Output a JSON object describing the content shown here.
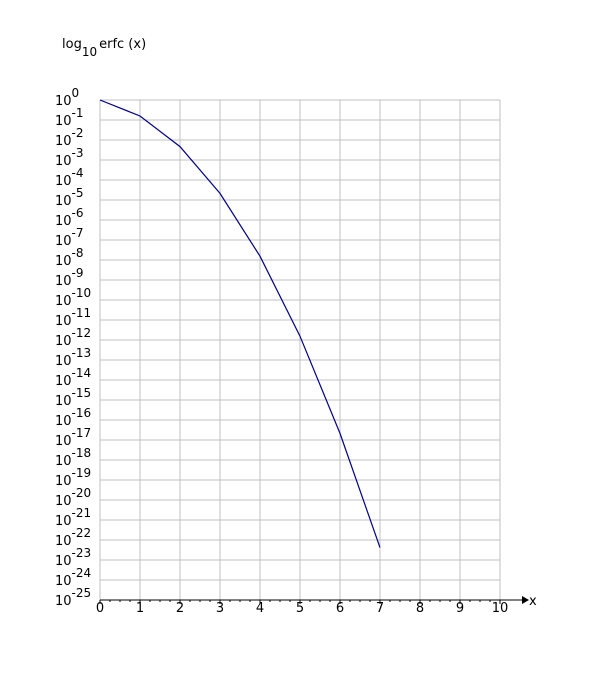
{
  "chart_data": {
    "type": "line",
    "title_main": "log",
    "title_sub": "10",
    "title_rest": "erfc (x)",
    "xlabel": "x",
    "xlim": [
      0,
      10
    ],
    "ylim": [
      -25,
      0
    ],
    "y_scale": "log10",
    "y_tick_base": "10",
    "x_ticks": [
      "0",
      "1",
      "2",
      "3",
      "4",
      "5",
      "6",
      "7",
      "8",
      "9",
      "10"
    ],
    "y_tick_exponents": [
      "0",
      "-1",
      "-2",
      "-3",
      "-4",
      "-5",
      "-6",
      "-7",
      "-8",
      "-9",
      "-10",
      "-11",
      "-12",
      "-13",
      "-14",
      "-15",
      "-16",
      "-17",
      "-18",
      "-19",
      "-20",
      "-21",
      "-22",
      "-23",
      "-24",
      "-25"
    ],
    "grid": true,
    "line_color": "#00008b",
    "grid_color": "#c0c0c0",
    "series": [
      {
        "x": [
          0,
          1,
          2,
          3,
          4,
          5,
          6,
          7
        ],
        "y": [
          0,
          -0.8,
          -2.33,
          -4.67,
          -7.81,
          -11.81,
          -16.67,
          -22.38
        ]
      }
    ]
  }
}
